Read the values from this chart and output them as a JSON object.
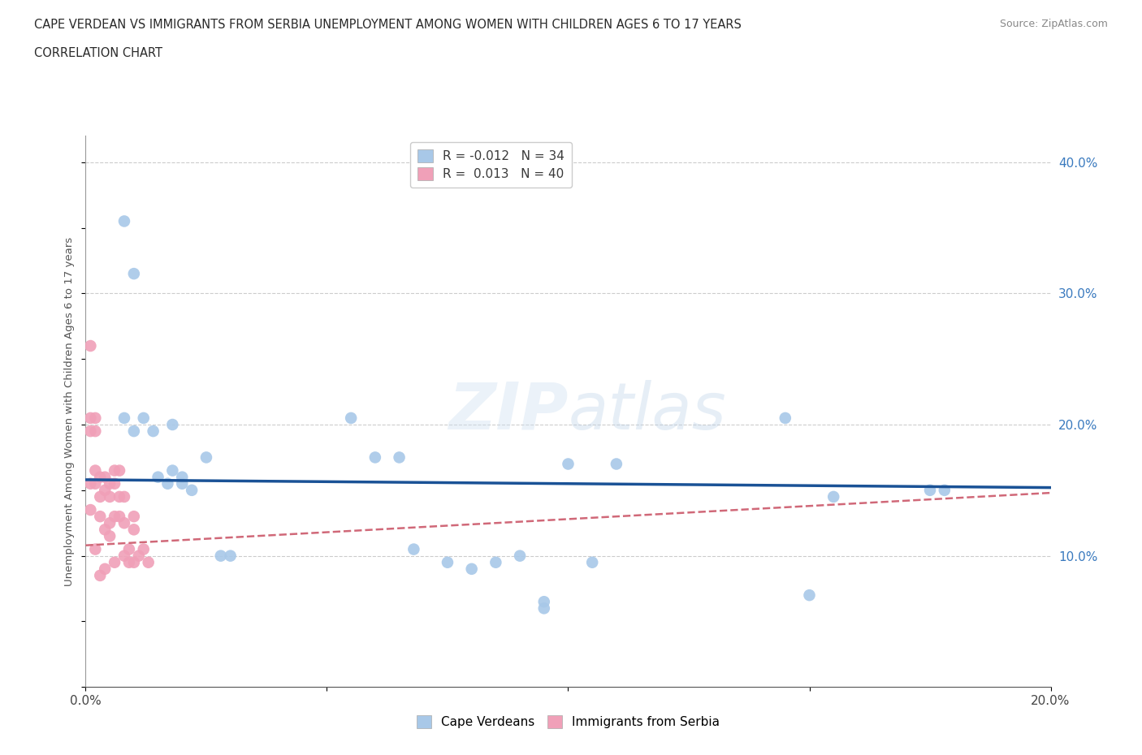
{
  "title_line1": "CAPE VERDEAN VS IMMIGRANTS FROM SERBIA UNEMPLOYMENT AMONG WOMEN WITH CHILDREN AGES 6 TO 17 YEARS",
  "title_line2": "CORRELATION CHART",
  "source": "Source: ZipAtlas.com",
  "ylabel": "Unemployment Among Women with Children Ages 6 to 17 years",
  "xlim": [
    0.0,
    0.2
  ],
  "ylim": [
    0.0,
    0.42
  ],
  "x_ticks": [
    0.0,
    0.05,
    0.1,
    0.15,
    0.2
  ],
  "y_ticks_right": [
    0.0,
    0.1,
    0.2,
    0.3,
    0.4
  ],
  "y_tick_labels_right": [
    "",
    "10.0%",
    "20.0%",
    "30.0%",
    "40.0%"
  ],
  "blue_color": "#a8c8e8",
  "pink_color": "#f0a0b8",
  "trend_blue_color": "#1a5296",
  "trend_pink_color": "#d06878",
  "blue_points_x": [
    0.008,
    0.01,
    0.008,
    0.01,
    0.012,
    0.014,
    0.015,
    0.017,
    0.018,
    0.018,
    0.02,
    0.02,
    0.022,
    0.025,
    0.028,
    0.03,
    0.055,
    0.06,
    0.065,
    0.068,
    0.075,
    0.08,
    0.085,
    0.09,
    0.095,
    0.095,
    0.1,
    0.105,
    0.11,
    0.145,
    0.15,
    0.155,
    0.175,
    0.178
  ],
  "blue_points_y": [
    0.355,
    0.315,
    0.205,
    0.195,
    0.205,
    0.195,
    0.16,
    0.155,
    0.2,
    0.165,
    0.16,
    0.155,
    0.15,
    0.175,
    0.1,
    0.1,
    0.205,
    0.175,
    0.175,
    0.105,
    0.095,
    0.09,
    0.095,
    0.1,
    0.065,
    0.06,
    0.17,
    0.095,
    0.17,
    0.205,
    0.07,
    0.145,
    0.15,
    0.15
  ],
  "pink_points_x": [
    0.001,
    0.001,
    0.001,
    0.001,
    0.001,
    0.002,
    0.002,
    0.002,
    0.002,
    0.002,
    0.003,
    0.003,
    0.003,
    0.003,
    0.004,
    0.004,
    0.004,
    0.004,
    0.005,
    0.005,
    0.005,
    0.005,
    0.006,
    0.006,
    0.006,
    0.006,
    0.007,
    0.007,
    0.007,
    0.008,
    0.008,
    0.008,
    0.009,
    0.009,
    0.01,
    0.01,
    0.01,
    0.011,
    0.012,
    0.013
  ],
  "pink_points_y": [
    0.26,
    0.205,
    0.195,
    0.155,
    0.135,
    0.205,
    0.195,
    0.165,
    0.155,
    0.105,
    0.16,
    0.145,
    0.13,
    0.085,
    0.16,
    0.15,
    0.12,
    0.09,
    0.155,
    0.145,
    0.125,
    0.115,
    0.165,
    0.155,
    0.13,
    0.095,
    0.165,
    0.145,
    0.13,
    0.145,
    0.125,
    0.1,
    0.105,
    0.095,
    0.13,
    0.12,
    0.095,
    0.1,
    0.105,
    0.095
  ],
  "blue_trend_y_start": 0.158,
  "blue_trend_y_end": 0.152,
  "pink_trend_y_start": 0.108,
  "pink_trend_y_end": 0.148
}
